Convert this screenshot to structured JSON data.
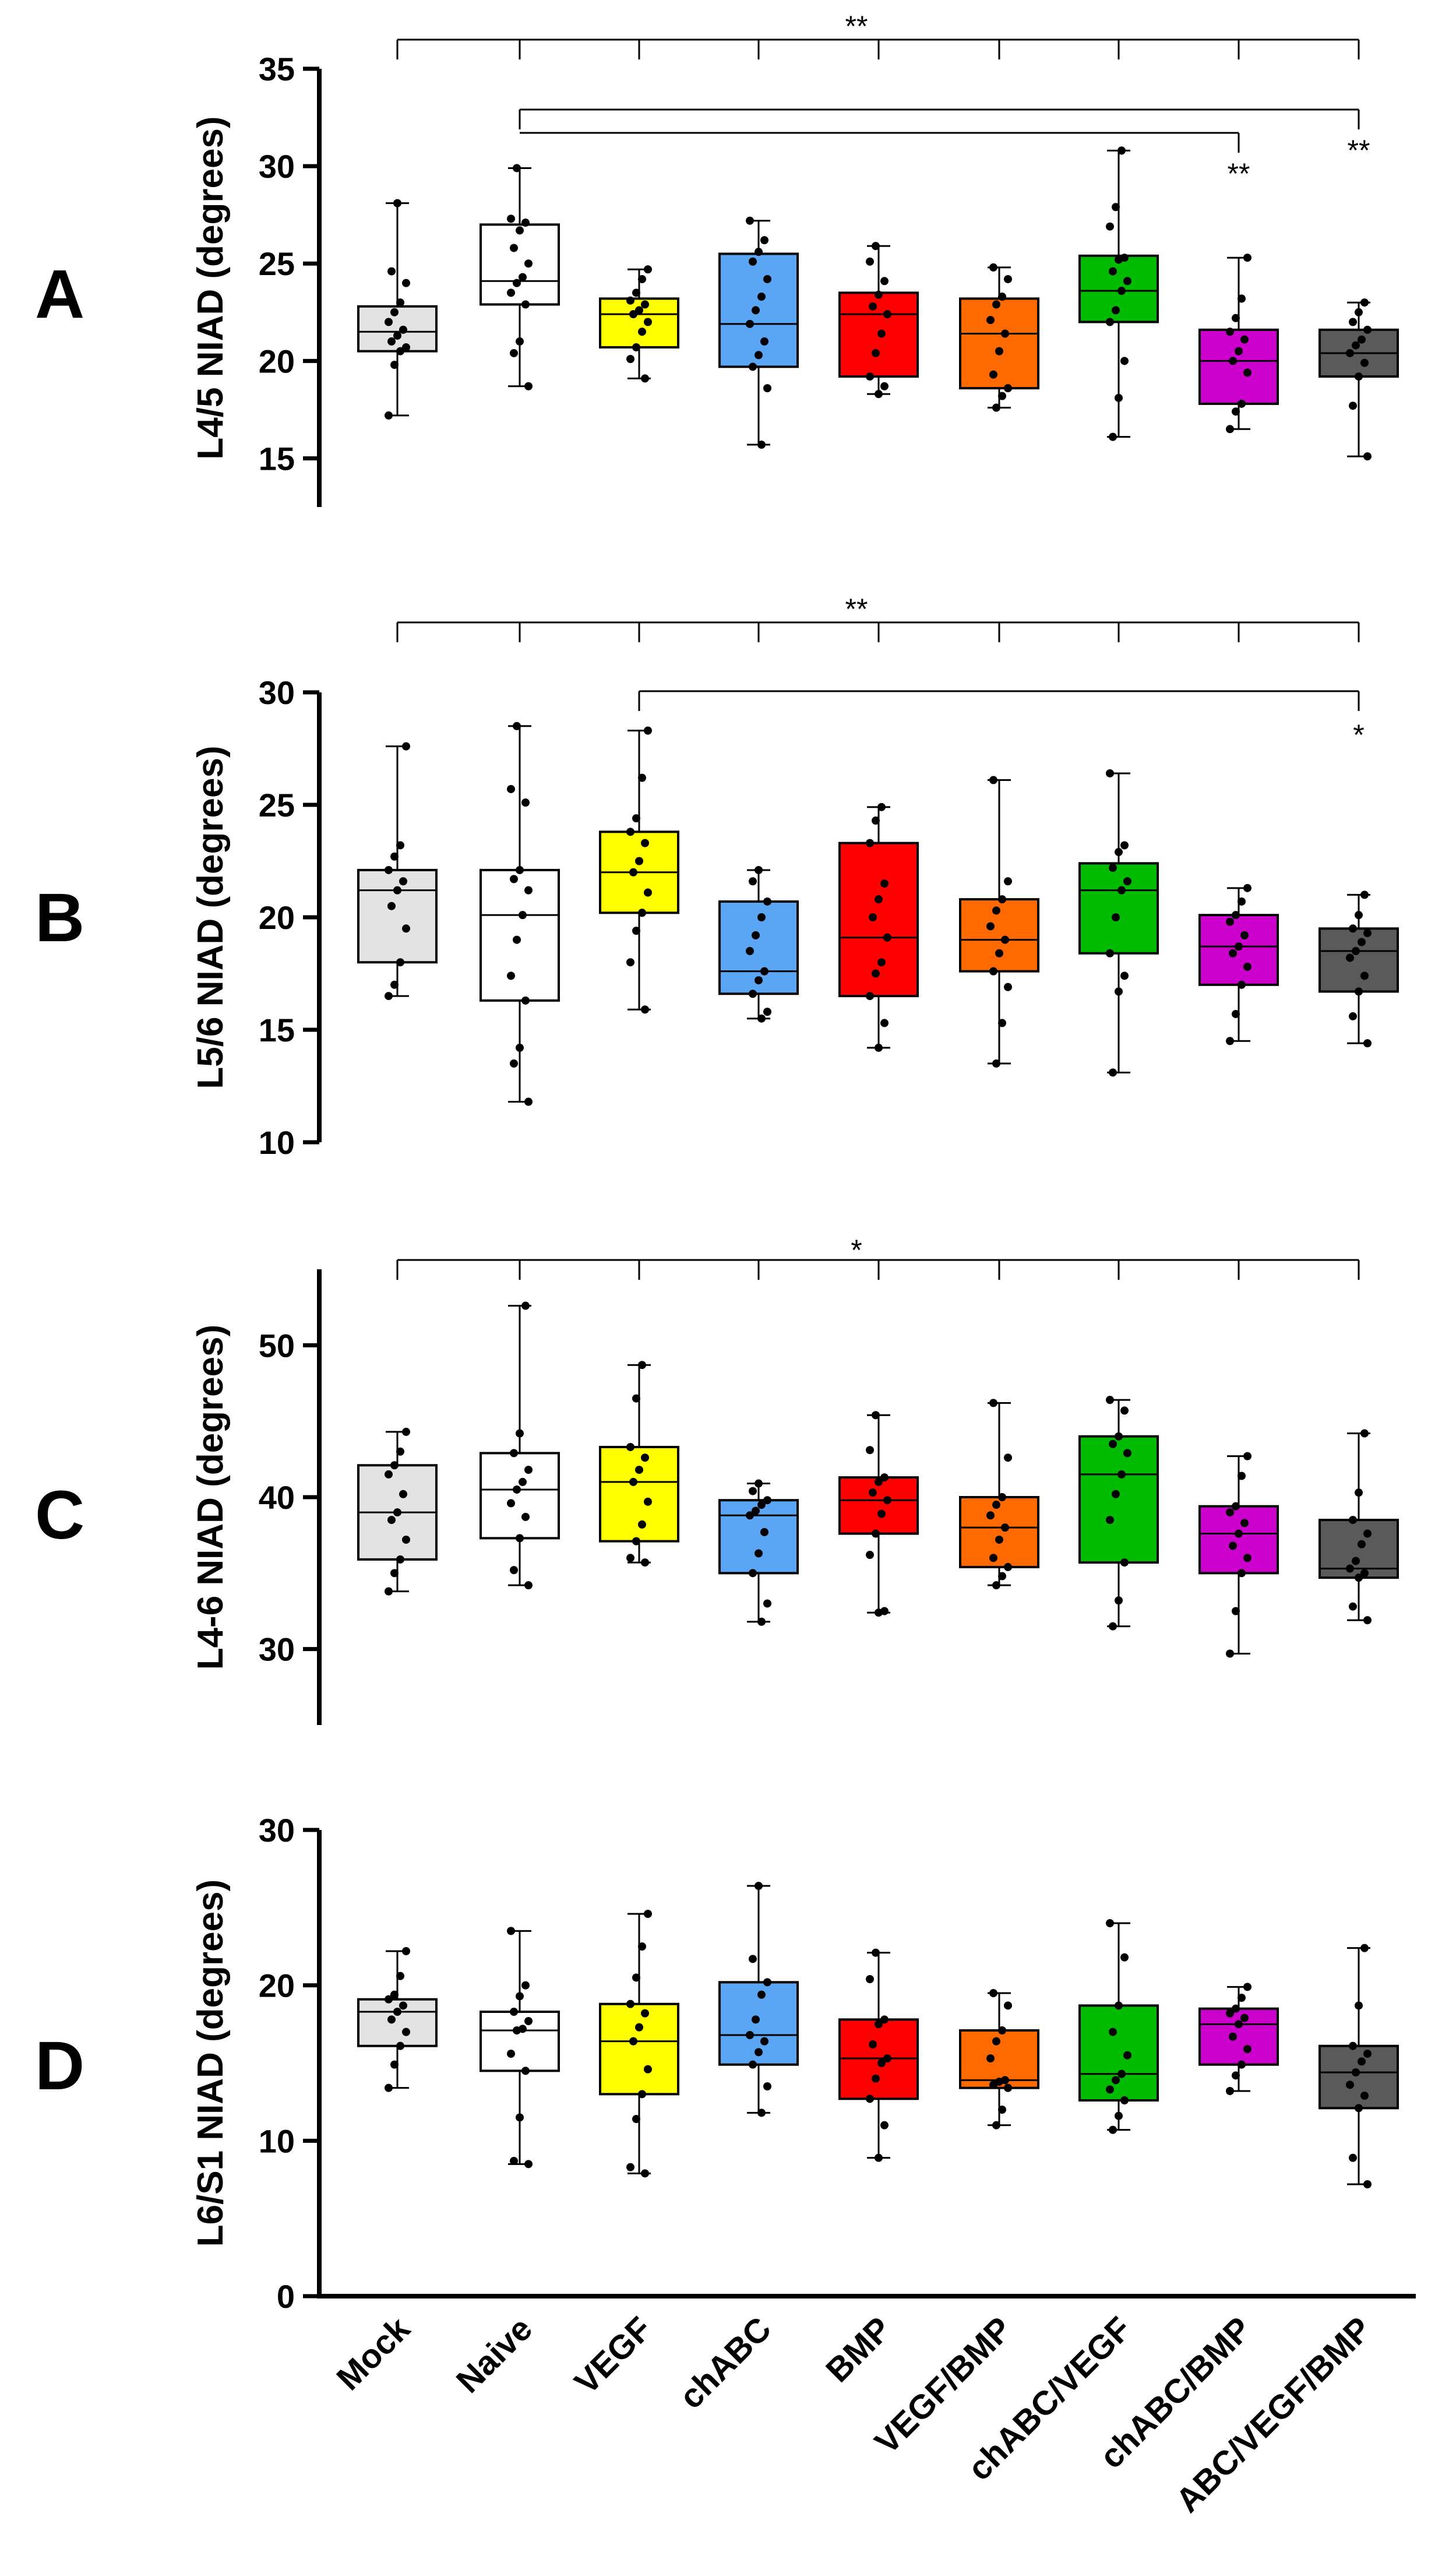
{
  "chart_data": {
    "type": "box",
    "categories": [
      "Mock",
      "Naive",
      "VEGF",
      "chABC",
      "BMP",
      "VEGF/BMP",
      "chABC/VEGF",
      "chABC/BMP",
      "ABC/VEGF/BMP"
    ],
    "colors": [
      "#e3e3e3",
      "#ffffff",
      "#ffff00",
      "#5aa6f5",
      "#ff0000",
      "#ff6a00",
      "#00bb00",
      "#cc00cc",
      "#5a5a5a"
    ],
    "panels": [
      {
        "letter": "A",
        "ylabel": "L4/5 NIAD (degrees)",
        "ylim": [
          12.5,
          35
        ],
        "ticks": [
          15,
          20,
          25,
          30,
          35
        ],
        "boxes": [
          {
            "min": 17.2,
            "q1": 20.5,
            "median": 21.5,
            "q3": 22.8,
            "max": 28.1,
            "points": [
              17.2,
              19.8,
              20.5,
              20.7,
              21.0,
              21.3,
              21.6,
              22.0,
              22.5,
              23.0,
              24.0,
              24.6,
              28.1
            ]
          },
          {
            "min": 18.7,
            "q1": 22.9,
            "median": 24.1,
            "q3": 27.0,
            "max": 29.9,
            "points": [
              18.7,
              20.4,
              21.0,
              22.9,
              23.5,
              24.0,
              24.3,
              25.0,
              25.8,
              26.7,
              27.1,
              27.3,
              29.9
            ]
          },
          {
            "min": 19.1,
            "q1": 20.7,
            "median": 22.4,
            "q3": 23.2,
            "max": 24.7,
            "points": [
              19.1,
              20.1,
              20.7,
              21.5,
              22.0,
              22.4,
              22.6,
              22.9,
              23.1,
              23.5,
              24.2,
              24.7
            ]
          },
          {
            "min": 15.7,
            "q1": 19.7,
            "median": 21.9,
            "q3": 25.5,
            "max": 27.2,
            "points": [
              15.7,
              18.6,
              19.7,
              20.3,
              21.0,
              21.9,
              22.6,
              23.3,
              24.2,
              25.1,
              25.6,
              26.2,
              27.2
            ]
          },
          {
            "min": 18.3,
            "q1": 19.2,
            "median": 22.4,
            "q3": 23.5,
            "max": 25.9,
            "points": [
              18.3,
              18.7,
              19.2,
              20.4,
              21.4,
              22.4,
              22.8,
              23.4,
              24.1,
              25.1,
              25.9
            ]
          },
          {
            "min": 17.6,
            "q1": 18.6,
            "median": 21.4,
            "q3": 23.2,
            "max": 24.8,
            "points": [
              17.6,
              18.2,
              18.6,
              19.3,
              20.5,
              21.4,
              22.1,
              22.9,
              23.3,
              24.2,
              24.8
            ]
          },
          {
            "min": 16.1,
            "q1": 22.0,
            "median": 23.6,
            "q3": 25.4,
            "max": 30.8,
            "points": [
              16.1,
              18.1,
              20.0,
              22.0,
              22.6,
              23.6,
              24.1,
              24.6,
              25.2,
              25.3,
              26.9,
              27.9,
              30.8
            ]
          },
          {
            "min": 16.5,
            "q1": 17.8,
            "median": 20.0,
            "q3": 21.6,
            "max": 25.3,
            "points": [
              16.5,
              17.4,
              17.8,
              19.4,
              20.0,
              20.5,
              21.1,
              21.5,
              22.2,
              23.2,
              25.3
            ]
          },
          {
            "min": 15.1,
            "q1": 19.2,
            "median": 20.4,
            "q3": 21.6,
            "max": 23.0,
            "points": [
              15.1,
              17.7,
              19.2,
              19.9,
              20.4,
              20.8,
              21.1,
              21.6,
              22.0,
              22.5,
              23.0
            ]
          }
        ],
        "sig_text": [
          "**",
          "**",
          "**"
        ]
      },
      {
        "letter": "B",
        "ylabel": "L5/6 NIAD (degrees)",
        "ylim": [
          10,
          30
        ],
        "ticks": [
          10,
          15,
          20,
          25,
          30
        ],
        "boxes": [
          {
            "min": 16.5,
            "q1": 18.0,
            "median": 21.2,
            "q3": 22.1,
            "max": 27.6,
            "points": [
              16.5,
              17.0,
              18.0,
              19.5,
              20.5,
              21.2,
              21.6,
              22.1,
              22.7,
              23.2,
              27.6
            ]
          },
          {
            "min": 11.8,
            "q1": 16.3,
            "median": 20.1,
            "q3": 22.1,
            "max": 28.5,
            "points": [
              11.8,
              13.5,
              14.2,
              16.3,
              17.4,
              19.0,
              20.1,
              21.2,
              21.7,
              22.1,
              25.1,
              25.7,
              28.5
            ]
          },
          {
            "min": 15.9,
            "q1": 20.2,
            "median": 22.0,
            "q3": 23.8,
            "max": 28.3,
            "points": [
              15.9,
              18.0,
              19.4,
              20.2,
              21.1,
              22.0,
              22.5,
              23.3,
              23.8,
              24.4,
              26.2,
              28.3
            ]
          },
          {
            "min": 15.5,
            "q1": 16.6,
            "median": 17.6,
            "q3": 20.7,
            "max": 22.1,
            "points": [
              15.5,
              15.8,
              16.6,
              17.2,
              17.6,
              18.5,
              19.2,
              20.0,
              20.7,
              21.6,
              22.1
            ]
          },
          {
            "min": 14.2,
            "q1": 16.5,
            "median": 19.1,
            "q3": 23.3,
            "max": 24.9,
            "points": [
              14.2,
              15.3,
              16.5,
              17.5,
              18.0,
              19.1,
              20.0,
              20.8,
              21.5,
              23.3,
              24.3,
              24.9
            ]
          },
          {
            "min": 13.5,
            "q1": 17.6,
            "median": 19.0,
            "q3": 20.8,
            "max": 26.1,
            "points": [
              13.5,
              15.3,
              16.9,
              17.6,
              18.4,
              19.0,
              19.6,
              20.3,
              20.8,
              21.6,
              26.1
            ]
          },
          {
            "min": 13.1,
            "q1": 18.4,
            "median": 21.2,
            "q3": 22.4,
            "max": 26.4,
            "points": [
              13.1,
              16.7,
              17.4,
              18.4,
              20.0,
              21.2,
              21.6,
              22.2,
              22.9,
              23.2,
              26.4
            ]
          },
          {
            "min": 14.5,
            "q1": 17.0,
            "median": 18.7,
            "q3": 20.1,
            "max": 21.3,
            "points": [
              14.5,
              15.7,
              17.0,
              17.8,
              18.4,
              18.7,
              19.2,
              19.8,
              20.1,
              20.7,
              21.3
            ]
          },
          {
            "min": 14.4,
            "q1": 16.7,
            "median": 18.5,
            "q3": 19.5,
            "max": 21.0,
            "points": [
              14.4,
              15.6,
              16.7,
              17.4,
              18.2,
              18.5,
              18.9,
              19.3,
              19.5,
              20.1,
              21.0
            ]
          }
        ],
        "sig_text": [
          "**",
          "*"
        ]
      },
      {
        "letter": "C",
        "ylabel": "L4-6 NIAD (degrees)",
        "ylim": [
          25,
          55
        ],
        "ticks": [
          30,
          40,
          50
        ],
        "boxes": [
          {
            "min": 33.8,
            "q1": 35.9,
            "median": 39.0,
            "q3": 42.1,
            "max": 44.3,
            "points": [
              33.8,
              35.0,
              35.9,
              37.2,
              38.5,
              39.0,
              40.2,
              41.5,
              42.1,
              43.0,
              44.3
            ]
          },
          {
            "min": 34.2,
            "q1": 37.3,
            "median": 40.5,
            "q3": 42.9,
            "max": 52.6,
            "points": [
              34.2,
              35.2,
              37.3,
              38.7,
              39.6,
              40.5,
              41.0,
              41.8,
              42.9,
              44.2,
              52.6
            ]
          },
          {
            "min": 35.7,
            "q1": 37.1,
            "median": 41.0,
            "q3": 43.3,
            "max": 48.7,
            "points": [
              35.7,
              36.0,
              37.1,
              38.2,
              39.7,
              41.0,
              41.8,
              42.6,
              43.3,
              46.5,
              48.7
            ]
          },
          {
            "min": 31.8,
            "q1": 35.0,
            "median": 38.8,
            "q3": 39.8,
            "max": 40.9,
            "points": [
              31.8,
              33.0,
              35.0,
              36.3,
              37.7,
              38.8,
              39.1,
              39.5,
              39.8,
              40.4,
              40.9
            ]
          },
          {
            "min": 32.4,
            "q1": 37.6,
            "median": 39.8,
            "q3": 41.3,
            "max": 45.4,
            "points": [
              32.4,
              32.5,
              36.2,
              37.6,
              38.9,
              39.8,
              40.3,
              41.0,
              41.3,
              43.1,
              45.4
            ]
          },
          {
            "min": 34.2,
            "q1": 35.4,
            "median": 38.0,
            "q3": 40.0,
            "max": 46.2,
            "points": [
              34.2,
              34.8,
              35.4,
              36.0,
              37.2,
              38.0,
              38.8,
              39.5,
              40.0,
              42.6,
              46.2
            ]
          },
          {
            "min": 31.5,
            "q1": 35.7,
            "median": 41.5,
            "q3": 44.0,
            "max": 46.4,
            "points": [
              31.5,
              33.2,
              35.7,
              38.5,
              40.2,
              41.5,
              42.9,
              43.5,
              44.0,
              45.7,
              46.4
            ]
          },
          {
            "min": 29.7,
            "q1": 35.0,
            "median": 37.6,
            "q3": 39.4,
            "max": 42.7,
            "points": [
              29.7,
              32.5,
              35.0,
              36.0,
              36.8,
              37.6,
              38.3,
              39.0,
              39.4,
              41.4,
              42.7
            ]
          },
          {
            "min": 31.9,
            "q1": 34.7,
            "median": 35.3,
            "q3": 38.5,
            "max": 44.2,
            "points": [
              31.9,
              32.8,
              34.7,
              35.0,
              35.3,
              35.8,
              36.9,
              37.6,
              38.5,
              40.3,
              44.2
            ]
          }
        ],
        "sig_text": [
          "*"
        ]
      },
      {
        "letter": "D",
        "ylabel": "L6/S1 NIAD (degrees)",
        "ylim": [
          0,
          30
        ],
        "ticks": [
          0,
          10,
          20,
          30
        ],
        "boxes": [
          {
            "min": 13.4,
            "q1": 16.1,
            "median": 18.3,
            "q3": 19.1,
            "max": 22.2,
            "points": [
              13.4,
              14.9,
              16.1,
              17.0,
              17.8,
              18.3,
              18.7,
              19.1,
              19.4,
              20.6,
              22.2
            ]
          },
          {
            "min": 8.5,
            "q1": 14.5,
            "median": 17.1,
            "q3": 18.3,
            "max": 23.5,
            "points": [
              8.5,
              8.7,
              11.5,
              14.5,
              15.6,
              17.1,
              17.2,
              17.7,
              18.3,
              19.3,
              20.0,
              23.5
            ]
          },
          {
            "min": 7.9,
            "q1": 13.0,
            "median": 16.4,
            "q3": 18.8,
            "max": 24.6,
            "points": [
              7.9,
              8.3,
              11.4,
              13.0,
              14.6,
              16.4,
              17.3,
              18.2,
              18.8,
              20.5,
              22.5,
              24.6
            ]
          },
          {
            "min": 11.8,
            "q1": 14.9,
            "median": 16.8,
            "q3": 20.2,
            "max": 26.4,
            "points": [
              11.8,
              13.5,
              14.9,
              15.7,
              16.4,
              16.8,
              17.8,
              19.4,
              20.2,
              21.7,
              26.4
            ]
          },
          {
            "min": 8.9,
            "q1": 12.7,
            "median": 15.3,
            "q3": 17.8,
            "max": 22.1,
            "points": [
              8.9,
              11.0,
              12.7,
              14.0,
              15.0,
              15.3,
              16.2,
              17.5,
              17.8,
              20.4,
              22.1
            ]
          },
          {
            "min": 11.0,
            "q1": 13.4,
            "median": 13.9,
            "q3": 17.1,
            "max": 19.5,
            "points": [
              11.0,
              12.0,
              13.4,
              13.6,
              13.8,
              13.9,
              15.3,
              16.4,
              17.1,
              18.7,
              19.5
            ]
          },
          {
            "min": 10.7,
            "q1": 12.6,
            "median": 14.3,
            "q3": 18.7,
            "max": 24.0,
            "points": [
              10.7,
              11.6,
              12.6,
              13.3,
              13.9,
              14.3,
              15.5,
              17.0,
              18.7,
              21.8,
              24.0
            ]
          },
          {
            "min": 13.2,
            "q1": 14.9,
            "median": 17.5,
            "q3": 18.5,
            "max": 19.9,
            "points": [
              13.2,
              14.2,
              14.9,
              15.9,
              16.7,
              17.5,
              17.9,
              18.2,
              18.5,
              19.2,
              19.9
            ]
          },
          {
            "min": 7.2,
            "q1": 12.1,
            "median": 14.4,
            "q3": 16.1,
            "max": 22.4,
            "points": [
              7.2,
              8.9,
              12.1,
              12.9,
              13.6,
              14.4,
              15.1,
              15.6,
              16.1,
              18.7,
              22.4
            ]
          }
        ],
        "sig_text": []
      }
    ]
  }
}
